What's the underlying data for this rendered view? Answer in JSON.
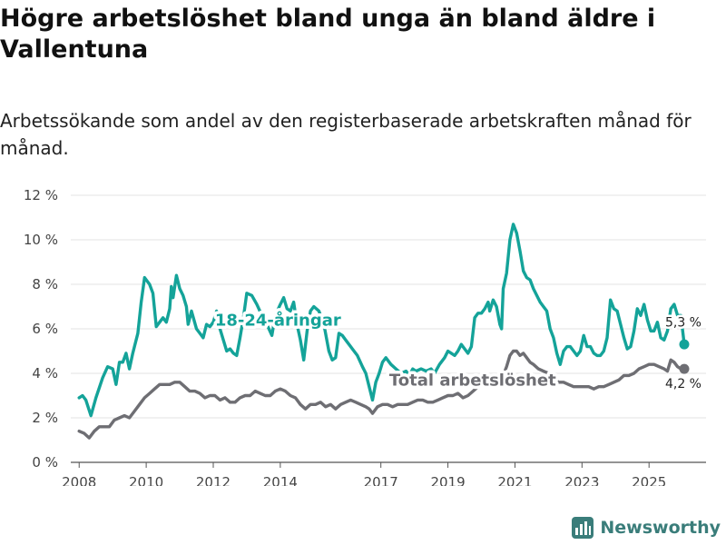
{
  "title": "Högre arbetslöshet bland unga än bland äldre i Vallentuna",
  "subtitle": "Arbetssökande som andel av den registerbaserade arbetskraften månad för månad.",
  "brand": "Newsworthy",
  "colors": {
    "youth": "#14a399",
    "total": "#6e6e73",
    "grid": "#e3e3e3",
    "axis": "#555555"
  },
  "chart_data": {
    "type": "line",
    "title": "Högre arbetslöshet bland unga än bland äldre i Vallentuna",
    "xlabel": "",
    "ylabel": "",
    "xlim": [
      2007.75,
      2026.7
    ],
    "ylim": [
      0,
      12
    ],
    "yticks": [
      0,
      2,
      4,
      6,
      8,
      10,
      12
    ],
    "ytick_labels": [
      "0 %",
      "2 %",
      "4 %",
      "6 %",
      "8 %",
      "10 %",
      "12 %"
    ],
    "xticks": [
      2008,
      2010,
      2012,
      2014,
      2017,
      2019,
      2021,
      2023,
      2025
    ],
    "xtick_labels": [
      "2008",
      "2010",
      "2012",
      "2014",
      "2017",
      "2019",
      "2021",
      "2023",
      "2025"
    ],
    "grid": true,
    "series": [
      {
        "name": "18-24-åringar",
        "key": "youth",
        "end_label": "5,3 %",
        "points": [
          [
            2008.0,
            2.9
          ],
          [
            2008.1,
            3.0
          ],
          [
            2008.2,
            2.8
          ],
          [
            2008.35,
            2.1
          ],
          [
            2008.5,
            2.9
          ],
          [
            2008.7,
            3.8
          ],
          [
            2008.85,
            4.3
          ],
          [
            2009.0,
            4.2
          ],
          [
            2009.1,
            3.5
          ],
          [
            2009.2,
            4.5
          ],
          [
            2009.3,
            4.5
          ],
          [
            2009.4,
            4.9
          ],
          [
            2009.5,
            4.2
          ],
          [
            2009.6,
            4.9
          ],
          [
            2009.75,
            5.8
          ],
          [
            2009.85,
            7.2
          ],
          [
            2009.95,
            8.3
          ],
          [
            2010.1,
            8.0
          ],
          [
            2010.2,
            7.6
          ],
          [
            2010.3,
            6.1
          ],
          [
            2010.4,
            6.3
          ],
          [
            2010.5,
            6.5
          ],
          [
            2010.6,
            6.3
          ],
          [
            2010.7,
            6.9
          ],
          [
            2010.75,
            7.9
          ],
          [
            2010.8,
            7.4
          ],
          [
            2010.9,
            8.4
          ],
          [
            2011.0,
            7.8
          ],
          [
            2011.1,
            7.5
          ],
          [
            2011.2,
            7.0
          ],
          [
            2011.25,
            6.2
          ],
          [
            2011.35,
            6.8
          ],
          [
            2011.5,
            6.0
          ],
          [
            2011.6,
            5.8
          ],
          [
            2011.7,
            5.6
          ],
          [
            2011.8,
            6.2
          ],
          [
            2011.9,
            6.1
          ],
          [
            2012.0,
            6.3
          ],
          [
            2012.1,
            6.8
          ],
          [
            2012.2,
            6.0
          ],
          [
            2012.3,
            5.5
          ],
          [
            2012.4,
            5.0
          ],
          [
            2012.5,
            5.1
          ],
          [
            2012.6,
            4.9
          ],
          [
            2012.7,
            4.8
          ],
          [
            2012.8,
            5.6
          ],
          [
            2012.9,
            6.5
          ],
          [
            2013.0,
            7.6
          ],
          [
            2013.15,
            7.5
          ],
          [
            2013.3,
            7.1
          ],
          [
            2013.45,
            6.6
          ],
          [
            2013.6,
            6.2
          ],
          [
            2013.75,
            5.7
          ],
          [
            2013.85,
            6.6
          ],
          [
            2014.0,
            7.1
          ],
          [
            2014.1,
            7.4
          ],
          [
            2014.2,
            6.9
          ],
          [
            2014.3,
            6.8
          ],
          [
            2014.4,
            7.2
          ],
          [
            2014.5,
            6.2
          ],
          [
            2014.6,
            5.5
          ],
          [
            2014.7,
            4.6
          ],
          [
            2014.8,
            5.9
          ],
          [
            2014.9,
            6.8
          ],
          [
            2015.0,
            7.0
          ],
          [
            2015.15,
            6.8
          ],
          [
            2015.3,
            6.2
          ],
          [
            2015.45,
            5.0
          ],
          [
            2015.55,
            4.6
          ],
          [
            2015.65,
            4.7
          ],
          [
            2015.75,
            5.8
          ],
          [
            2015.85,
            5.7
          ],
          [
            2016.0,
            5.4
          ],
          [
            2016.15,
            5.1
          ],
          [
            2016.3,
            4.8
          ],
          [
            2016.45,
            4.3
          ],
          [
            2016.55,
            4.0
          ],
          [
            2016.65,
            3.4
          ],
          [
            2016.75,
            2.8
          ],
          [
            2016.85,
            3.6
          ],
          [
            2016.95,
            4.0
          ],
          [
            2017.05,
            4.5
          ],
          [
            2017.15,
            4.7
          ],
          [
            2017.3,
            4.4
          ],
          [
            2017.45,
            4.2
          ],
          [
            2017.6,
            4.0
          ],
          [
            2017.75,
            4.1
          ],
          [
            2017.85,
            3.9
          ],
          [
            2017.95,
            4.2
          ],
          [
            2018.05,
            4.1
          ],
          [
            2018.2,
            4.2
          ],
          [
            2018.35,
            4.1
          ],
          [
            2018.5,
            4.2
          ],
          [
            2018.6,
            4.0
          ],
          [
            2018.75,
            4.4
          ],
          [
            2018.9,
            4.7
          ],
          [
            2019.0,
            5.0
          ],
          [
            2019.1,
            4.9
          ],
          [
            2019.2,
            4.8
          ],
          [
            2019.3,
            5.0
          ],
          [
            2019.4,
            5.3
          ],
          [
            2019.5,
            5.1
          ],
          [
            2019.6,
            4.9
          ],
          [
            2019.7,
            5.2
          ],
          [
            2019.8,
            6.5
          ],
          [
            2019.9,
            6.7
          ],
          [
            2020.0,
            6.7
          ],
          [
            2020.1,
            6.9
          ],
          [
            2020.2,
            7.2
          ],
          [
            2020.25,
            6.8
          ],
          [
            2020.35,
            7.3
          ],
          [
            2020.45,
            7.0
          ],
          [
            2020.55,
            6.2
          ],
          [
            2020.6,
            6.0
          ],
          [
            2020.65,
            7.8
          ],
          [
            2020.75,
            8.5
          ],
          [
            2020.85,
            10.0
          ],
          [
            2020.95,
            10.7
          ],
          [
            2021.05,
            10.3
          ],
          [
            2021.15,
            9.5
          ],
          [
            2021.25,
            8.6
          ],
          [
            2021.35,
            8.3
          ],
          [
            2021.45,
            8.2
          ],
          [
            2021.55,
            7.8
          ],
          [
            2021.65,
            7.5
          ],
          [
            2021.75,
            7.2
          ],
          [
            2021.85,
            7.0
          ],
          [
            2021.95,
            6.8
          ],
          [
            2022.05,
            6.0
          ],
          [
            2022.15,
            5.6
          ],
          [
            2022.25,
            4.9
          ],
          [
            2022.35,
            4.4
          ],
          [
            2022.45,
            5.0
          ],
          [
            2022.55,
            5.2
          ],
          [
            2022.65,
            5.2
          ],
          [
            2022.75,
            5.0
          ],
          [
            2022.85,
            4.8
          ],
          [
            2022.95,
            5.0
          ],
          [
            2023.05,
            5.7
          ],
          [
            2023.15,
            5.2
          ],
          [
            2023.25,
            5.2
          ],
          [
            2023.35,
            4.9
          ],
          [
            2023.45,
            4.8
          ],
          [
            2023.55,
            4.8
          ],
          [
            2023.65,
            5.0
          ],
          [
            2023.75,
            5.6
          ],
          [
            2023.85,
            7.3
          ],
          [
            2023.95,
            6.9
          ],
          [
            2024.05,
            6.8
          ],
          [
            2024.15,
            6.2
          ],
          [
            2024.25,
            5.6
          ],
          [
            2024.35,
            5.1
          ],
          [
            2024.45,
            5.2
          ],
          [
            2024.55,
            5.9
          ],
          [
            2024.65,
            6.9
          ],
          [
            2024.75,
            6.6
          ],
          [
            2024.85,
            7.1
          ],
          [
            2024.95,
            6.4
          ],
          [
            2025.05,
            5.9
          ],
          [
            2025.15,
            5.9
          ],
          [
            2025.25,
            6.3
          ],
          [
            2025.35,
            5.6
          ],
          [
            2025.45,
            5.5
          ],
          [
            2025.55,
            5.9
          ],
          [
            2025.65,
            6.9
          ],
          [
            2025.75,
            7.1
          ],
          [
            2025.85,
            6.6
          ],
          [
            2025.95,
            6.6
          ],
          [
            2026.05,
            5.3
          ]
        ]
      },
      {
        "name": "Total arbetslöshet",
        "key": "total",
        "end_label": "4,2 %",
        "points": [
          [
            2008.0,
            1.4
          ],
          [
            2008.15,
            1.3
          ],
          [
            2008.3,
            1.1
          ],
          [
            2008.45,
            1.4
          ],
          [
            2008.6,
            1.6
          ],
          [
            2008.75,
            1.6
          ],
          [
            2008.9,
            1.6
          ],
          [
            2009.05,
            1.9
          ],
          [
            2009.2,
            2.0
          ],
          [
            2009.35,
            2.1
          ],
          [
            2009.5,
            2.0
          ],
          [
            2009.65,
            2.3
          ],
          [
            2009.8,
            2.6
          ],
          [
            2009.95,
            2.9
          ],
          [
            2010.1,
            3.1
          ],
          [
            2010.25,
            3.3
          ],
          [
            2010.4,
            3.5
          ],
          [
            2010.55,
            3.5
          ],
          [
            2010.7,
            3.5
          ],
          [
            2010.85,
            3.6
          ],
          [
            2011.0,
            3.6
          ],
          [
            2011.15,
            3.4
          ],
          [
            2011.3,
            3.2
          ],
          [
            2011.45,
            3.2
          ],
          [
            2011.6,
            3.1
          ],
          [
            2011.75,
            2.9
          ],
          [
            2011.9,
            3.0
          ],
          [
            2012.05,
            3.0
          ],
          [
            2012.2,
            2.8
          ],
          [
            2012.35,
            2.9
          ],
          [
            2012.5,
            2.7
          ],
          [
            2012.65,
            2.7
          ],
          [
            2012.8,
            2.9
          ],
          [
            2012.95,
            3.0
          ],
          [
            2013.1,
            3.0
          ],
          [
            2013.25,
            3.2
          ],
          [
            2013.4,
            3.1
          ],
          [
            2013.55,
            3.0
          ],
          [
            2013.7,
            3.0
          ],
          [
            2013.85,
            3.2
          ],
          [
            2014.0,
            3.3
          ],
          [
            2014.15,
            3.2
          ],
          [
            2014.3,
            3.0
          ],
          [
            2014.45,
            2.9
          ],
          [
            2014.6,
            2.6
          ],
          [
            2014.75,
            2.4
          ],
          [
            2014.9,
            2.6
          ],
          [
            2015.05,
            2.6
          ],
          [
            2015.2,
            2.7
          ],
          [
            2015.35,
            2.5
          ],
          [
            2015.5,
            2.6
          ],
          [
            2015.65,
            2.4
          ],
          [
            2015.8,
            2.6
          ],
          [
            2015.95,
            2.7
          ],
          [
            2016.1,
            2.8
          ],
          [
            2016.25,
            2.7
          ],
          [
            2016.4,
            2.6
          ],
          [
            2016.55,
            2.5
          ],
          [
            2016.65,
            2.4
          ],
          [
            2016.75,
            2.2
          ],
          [
            2016.9,
            2.5
          ],
          [
            2017.05,
            2.6
          ],
          [
            2017.2,
            2.6
          ],
          [
            2017.35,
            2.5
          ],
          [
            2017.5,
            2.6
          ],
          [
            2017.65,
            2.6
          ],
          [
            2017.8,
            2.6
          ],
          [
            2017.95,
            2.7
          ],
          [
            2018.1,
            2.8
          ],
          [
            2018.25,
            2.8
          ],
          [
            2018.4,
            2.7
          ],
          [
            2018.55,
            2.7
          ],
          [
            2018.7,
            2.8
          ],
          [
            2018.85,
            2.9
          ],
          [
            2019.0,
            3.0
          ],
          [
            2019.15,
            3.0
          ],
          [
            2019.3,
            3.1
          ],
          [
            2019.45,
            2.9
          ],
          [
            2019.6,
            3.0
          ],
          [
            2019.75,
            3.2
          ],
          [
            2019.9,
            3.4
          ],
          [
            2020.05,
            3.5
          ],
          [
            2020.2,
            3.7
          ],
          [
            2020.35,
            3.8
          ],
          [
            2020.5,
            3.7
          ],
          [
            2020.65,
            3.9
          ],
          [
            2020.75,
            4.3
          ],
          [
            2020.85,
            4.8
          ],
          [
            2020.95,
            5.0
          ],
          [
            2021.05,
            5.0
          ],
          [
            2021.15,
            4.8
          ],
          [
            2021.25,
            4.9
          ],
          [
            2021.35,
            4.7
          ],
          [
            2021.45,
            4.5
          ],
          [
            2021.55,
            4.4
          ],
          [
            2021.7,
            4.2
          ],
          [
            2021.85,
            4.1
          ],
          [
            2022.0,
            4.0
          ],
          [
            2022.15,
            3.8
          ],
          [
            2022.3,
            3.6
          ],
          [
            2022.45,
            3.6
          ],
          [
            2022.6,
            3.5
          ],
          [
            2022.75,
            3.4
          ],
          [
            2022.9,
            3.4
          ],
          [
            2023.05,
            3.4
          ],
          [
            2023.2,
            3.4
          ],
          [
            2023.35,
            3.3
          ],
          [
            2023.5,
            3.4
          ],
          [
            2023.65,
            3.4
          ],
          [
            2023.8,
            3.5
          ],
          [
            2023.95,
            3.6
          ],
          [
            2024.1,
            3.7
          ],
          [
            2024.25,
            3.9
          ],
          [
            2024.4,
            3.9
          ],
          [
            2024.55,
            4.0
          ],
          [
            2024.7,
            4.2
          ],
          [
            2024.85,
            4.3
          ],
          [
            2025.0,
            4.4
          ],
          [
            2025.15,
            4.4
          ],
          [
            2025.3,
            4.3
          ],
          [
            2025.45,
            4.2
          ],
          [
            2025.55,
            4.1
          ],
          [
            2025.65,
            4.6
          ],
          [
            2025.75,
            4.5
          ],
          [
            2025.85,
            4.3
          ],
          [
            2025.95,
            4.2
          ],
          [
            2026.05,
            4.2
          ]
        ]
      }
    ]
  }
}
